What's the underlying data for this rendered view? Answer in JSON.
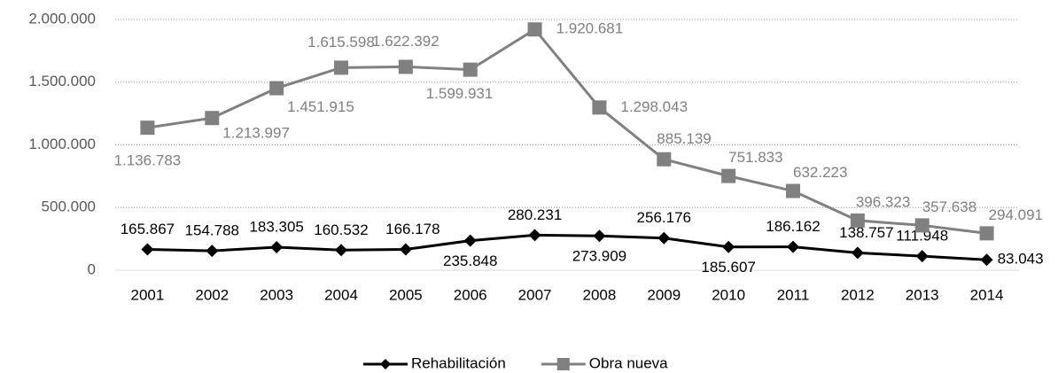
{
  "chart_data": {
    "type": "line",
    "categories": [
      "2001",
      "2002",
      "2003",
      "2004",
      "2005",
      "2006",
      "2007",
      "2008",
      "2009",
      "2010",
      "2011",
      "2012",
      "2013",
      "2014"
    ],
    "series": [
      {
        "name": "Rehabilitación",
        "color": "#000000",
        "marker": "diamond",
        "values": [
          165867,
          154788,
          183305,
          160532,
          166178,
          235848,
          280231,
          273909,
          256176,
          185607,
          186162,
          138757,
          111948,
          83043
        ],
        "value_labels": [
          "165.867",
          "154.788",
          "183.305",
          "160.532",
          "166.178",
          "235.848",
          "280.231",
          "273.909",
          "256.176",
          "185.607",
          "186.162",
          "138.757",
          "111.948",
          "83.043"
        ]
      },
      {
        "name": "Obra nueva",
        "color": "#808080",
        "marker": "square",
        "values": [
          1136783,
          1213997,
          1451915,
          1615598,
          1622392,
          1599931,
          1920681,
          1298043,
          885139,
          751833,
          632223,
          396323,
          357638,
          294091
        ],
        "value_labels": [
          "1.136.783",
          "1.213.997",
          "1.451.915",
          "1.615.598",
          "1.622.392",
          "1.599.931",
          "1.920.681",
          "1.298.043",
          "885.139",
          "751.833",
          "632.223",
          "396.323",
          "357.638",
          "294.091"
        ]
      }
    ],
    "ylim": [
      0,
      2000000
    ],
    "yticks": [
      0,
      {
        "value": 500000,
        "label": "500.000"
      },
      {
        "value": 1000000,
        "label": "1.000.000"
      },
      {
        "value": 1500000,
        "label": "1.500.000"
      },
      {
        "value": 2000000,
        "label": "2.000.000"
      }
    ],
    "grid": true,
    "legend": "bottom"
  }
}
